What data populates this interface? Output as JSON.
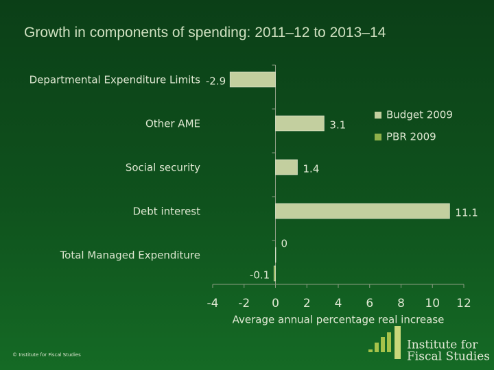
{
  "chart_data": {
    "type": "bar",
    "orientation": "horizontal",
    "title": "Growth in components of spending: 2011–12 to 2013–14",
    "categories": [
      "Departmental Expenditure Limits",
      "Other AME",
      "Social security",
      "Debt interest",
      "Total Managed Expenditure"
    ],
    "series": [
      {
        "name": "Budget 2009",
        "color": "#c3cf9f",
        "values": [
          -2.9,
          3.1,
          1.4,
          11.1,
          0
        ]
      },
      {
        "name": "PBR 2009",
        "color": "#8fb04a",
        "values": [
          null,
          null,
          null,
          null,
          -0.1
        ]
      }
    ],
    "xlim": [
      -4,
      12
    ],
    "xticks": [
      -4,
      -2,
      0,
      2,
      4,
      6,
      8,
      10,
      12
    ],
    "xlabel": "Average annual percentage real increase",
    "legend": "right",
    "copyright": "© Institute for Fiscal Studies",
    "logo": [
      "Institute for",
      "Fiscal Studies"
    ]
  }
}
